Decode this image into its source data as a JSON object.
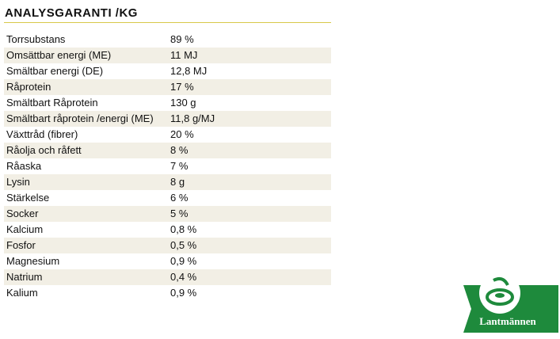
{
  "header": {
    "title": "ANALYSGARANTI /KG"
  },
  "table": {
    "rows": [
      [
        "Torrsubstans",
        "89 %"
      ],
      [
        "Omsättbar energi (ME)",
        "11 MJ"
      ],
      [
        "Smältbar energi (DE)",
        "12,8 MJ"
      ],
      [
        "Råprotein",
        "17 %"
      ],
      [
        "Smältbart Råprotein",
        "130 g"
      ],
      [
        "Smältbart råprotein /energi (ME)",
        "11,8 g/MJ"
      ],
      [
        "Växttråd (fibrer)",
        "20 %"
      ],
      [
        "Råolja och råfett",
        "8 %"
      ],
      [
        "Råaska",
        "7 %"
      ],
      [
        "Lysin",
        "8 g"
      ],
      [
        "Stärkelse",
        "6 %"
      ],
      [
        "Socker",
        "5 %"
      ],
      [
        "Kalcium",
        "0,8 %"
      ],
      [
        "Fosfor",
        "0,5 %"
      ],
      [
        "Magnesium",
        "0,9 %"
      ],
      [
        "Natrium",
        "0,4 %"
      ],
      [
        "Kalium",
        "0,9 %"
      ]
    ]
  },
  "logo": {
    "text": "Lantmännen"
  }
}
